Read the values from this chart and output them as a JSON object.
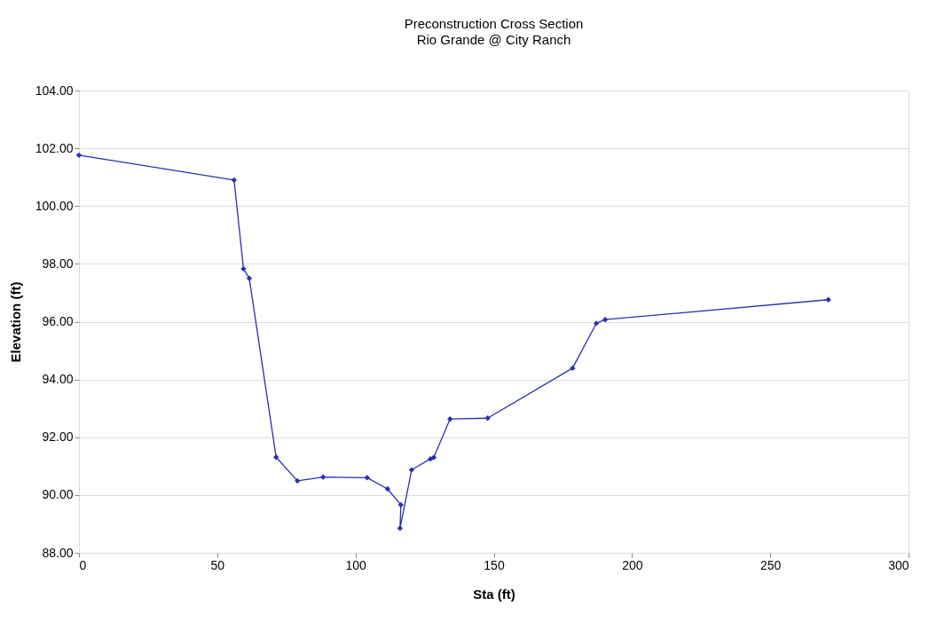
{
  "chart_data": {
    "type": "line",
    "title": "Preconstruction Cross Section",
    "subtitle": "Rio Grande @ City Ranch",
    "xlabel": "Sta (ft)",
    "ylabel": "Elevation (ft)",
    "xlim": [
      0,
      300
    ],
    "xticks": [
      0,
      50,
      100,
      150,
      200,
      250,
      300
    ],
    "ylim": [
      88,
      104
    ],
    "yticks": [
      {
        "value": 88,
        "label": "88.00"
      },
      {
        "value": 90,
        "label": "90.00"
      },
      {
        "value": 92,
        "label": "92.00"
      },
      {
        "value": 94,
        "label": "94.00"
      },
      {
        "value": 96,
        "label": "96.00"
      },
      {
        "value": 98,
        "label": "98.00"
      },
      {
        "value": 100,
        "label": "100.00"
      },
      {
        "value": 102,
        "label": "102.00"
      },
      {
        "value": 104,
        "label": "104.00"
      }
    ],
    "grid": "y",
    "marker": "diamond",
    "line_style": "solid",
    "series": [
      {
        "color": "#2a2fb0",
        "x": [
          0,
          56.1,
          59.5,
          61.6,
          71.3,
          79.0,
          88.3,
          104.2,
          111.6,
          116.4,
          116.1,
          120.3,
          127.1,
          128.3,
          134.2,
          147.8,
          178.5,
          187.1,
          190.3,
          271.0
        ],
        "values": [
          101.76,
          100.9,
          97.83,
          97.5,
          91.31,
          90.49,
          90.62,
          90.6,
          90.21,
          89.66,
          88.85,
          90.87,
          91.25,
          91.3,
          92.63,
          92.66,
          94.39,
          95.94,
          96.07,
          96.76
        ]
      }
    ]
  }
}
